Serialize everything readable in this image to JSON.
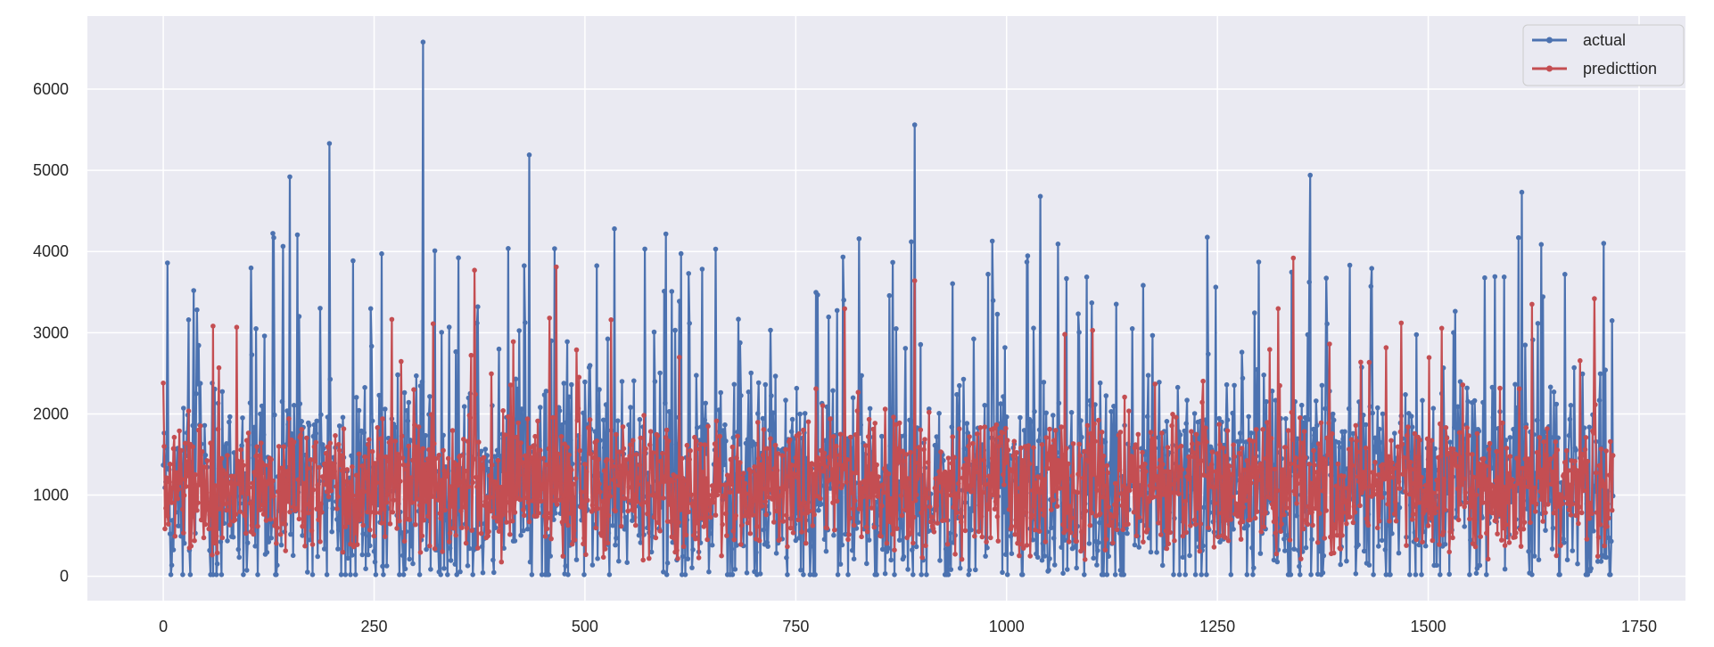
{
  "chart_data": {
    "type": "line",
    "title": "",
    "xlabel": "",
    "ylabel": "",
    "xlim": [
      -90,
      1805
    ],
    "ylim": [
      -300,
      6900
    ],
    "xticks": [
      0,
      250,
      500,
      750,
      1000,
      1250,
      1500,
      1750
    ],
    "yticks": [
      0,
      1000,
      2000,
      3000,
      4000,
      5000,
      6000
    ],
    "xtick_labels": [
      "0",
      "250",
      "500",
      "750",
      "1000",
      "1250",
      "1500",
      "1750"
    ],
    "ytick_labels": [
      "0",
      "1000",
      "2000",
      "3000",
      "4000",
      "5000",
      "6000"
    ],
    "grid": true,
    "legend_position": "top-right",
    "n_points": 1720,
    "series": [
      {
        "name": "actual",
        "color": "#4c72b0",
        "marker": "circle",
        "min": 20,
        "max": 6580,
        "notable_peaks": [
          [
            5,
            3860
          ],
          [
            150,
            4920
          ],
          [
            197,
            5330
          ],
          [
            308,
            6580
          ],
          [
            434,
            5190
          ],
          [
            891,
            5560
          ],
          [
            1040,
            4680
          ],
          [
            1360,
            4940
          ],
          [
            1611,
            4730
          ],
          [
            1708,
            4100
          ]
        ]
      },
      {
        "name": "predicttion",
        "color": "#c44e52",
        "marker": "circle",
        "min": 60,
        "max": 3920,
        "notable_peaks": [
          [
            0,
            2380
          ],
          [
            369,
            3770
          ],
          [
            466,
            3810
          ],
          [
            891,
            3640
          ],
          [
            1340,
            3920
          ],
          [
            1623,
            3350
          ],
          [
            1697,
            3420
          ]
        ]
      }
    ]
  },
  "colors": {
    "plot_background": "#eaeaf2",
    "grid": "#ffffff",
    "figure_background": "#ffffff"
  }
}
